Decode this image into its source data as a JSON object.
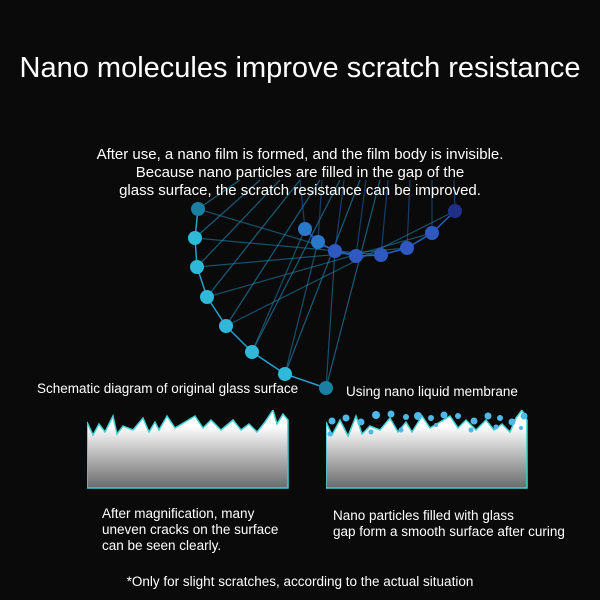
{
  "title": "Nano molecules improve scratch resistance",
  "intro": [
    "After use, a nano film is formed, and the film body is invisible.",
    "Because nano particles are filled in the gap of the",
    "glass surface, the scratch resistance can be improved."
  ],
  "left": {
    "label": "Schematic diagram of original glass surface",
    "caption": [
      "After magnification, many",
      "uneven cracks on the surface",
      "can be seen clearly."
    ]
  },
  "right": {
    "label": "Using nano liquid membrane",
    "caption": [
      "Nano particles filled with glass",
      "gap form a smooth surface after curing"
    ]
  },
  "note": "*Only for slight scratches, according to the actual situation",
  "colors": {
    "background": "#0a0a0a",
    "cyan": "#2fb8d8",
    "blue": "#2f5fc8",
    "panel_glow": "#3fd0d0"
  }
}
